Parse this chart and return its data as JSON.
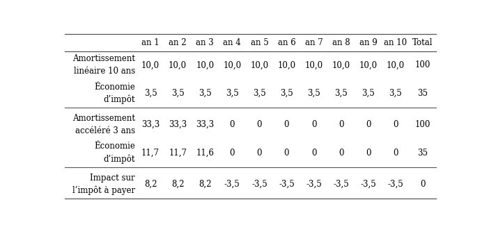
{
  "columns": [
    "",
    "an 1",
    "an 2",
    "an 3",
    "an 4",
    "an 5",
    "an 6",
    "an 7",
    "an 8",
    "an 9",
    "an 10",
    "Total"
  ],
  "rows": [
    {
      "label": "Amortissement\nlinéaire 10 ans",
      "values": [
        "10,0",
        "10,0",
        "10,0",
        "10,0",
        "10,0",
        "10,0",
        "10,0",
        "10,0",
        "10,0",
        "10,0",
        "100"
      ],
      "indent": false
    },
    {
      "label": "Économie\nd’impôt",
      "values": [
        "3,5",
        "3,5",
        "3,5",
        "3,5",
        "3,5",
        "3,5",
        "3,5",
        "3,5",
        "3,5",
        "3,5",
        "35"
      ],
      "indent": true
    },
    {
      "label": "Amortissement\naccéléré 3 ans",
      "values": [
        "33,3",
        "33,3",
        "33,3",
        "0",
        "0",
        "0",
        "0",
        "0",
        "0",
        "0",
        "100"
      ],
      "indent": false
    },
    {
      "label": "Économie\nd’impôt",
      "values": [
        "11,7",
        "11,7",
        "11,6",
        "0",
        "0",
        "0",
        "0",
        "0",
        "0",
        "0",
        "35"
      ],
      "indent": true
    },
    {
      "label": "Impact sur\nl’impôt à payer",
      "values": [
        "8,2",
        "8,2",
        "8,2",
        "-3,5",
        "-3,5",
        "-3,5",
        "-3,5",
        "-3,5",
        "-3,5",
        "-3,5",
        "0"
      ],
      "indent": false
    }
  ],
  "bg_color": "#ffffff",
  "text_color": "#000000",
  "line_color": "#555555",
  "font_size": 8.5
}
